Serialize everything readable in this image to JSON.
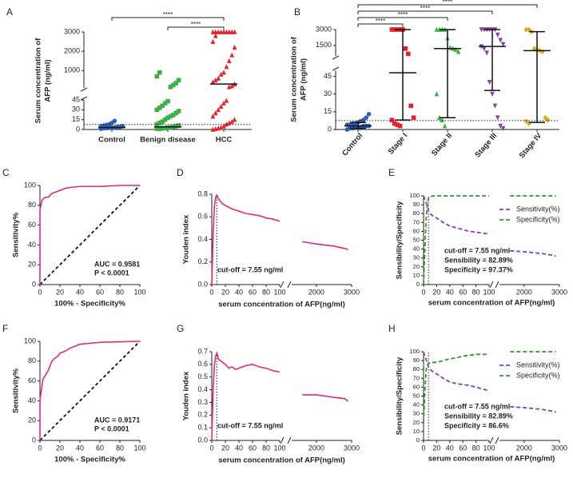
{
  "chart_data": [
    {
      "type": "strip",
      "panel_label": "A",
      "ylabel": [
        "Serum concentration of",
        "AFP (ng/ml)"
      ],
      "categories": [
        "Control",
        "Benign disease",
        "HCC"
      ],
      "y_segments": [
        {
          "ylim": [
            0,
            45
          ],
          "yticks": [
            0,
            15,
            30,
            45
          ]
        },
        {
          "ylim": [
            100,
            3000
          ],
          "yticks": [
            1000,
            2000,
            3000
          ]
        }
      ],
      "series": [
        {
          "color": "#2f5fb3",
          "marker": "circle",
          "values": [
            1,
            2,
            2,
            3,
            3,
            3,
            4,
            4,
            5,
            5,
            6,
            7,
            8,
            10,
            13
          ]
        },
        {
          "color": "#3cb043",
          "marker": "square",
          "values": [
            1,
            1,
            2,
            2,
            3,
            3,
            4,
            5,
            6,
            8,
            10,
            12,
            15,
            18,
            20,
            22,
            25,
            28,
            30,
            33,
            36,
            40,
            43,
            150,
            250,
            350,
            500,
            700,
            900
          ]
        },
        {
          "color": "#e8202a",
          "marker": "triangle",
          "values": [
            0,
            1,
            2,
            3,
            5,
            8,
            10,
            12,
            15,
            20,
            25,
            30,
            35,
            40,
            44,
            150,
            200,
            300,
            400,
            500,
            600,
            800,
            900,
            1200,
            1500,
            1800,
            2200,
            2500,
            2800,
            3000,
            3000,
            3000,
            3000,
            3000,
            3000,
            3000,
            3000,
            3000
          ]
        }
      ],
      "medians": [
        3,
        4,
        300
      ],
      "reference_line": 7.55,
      "significance": [
        {
          "pair": [
            0,
            2
          ],
          "label": "****"
        },
        {
          "pair": [
            1,
            2
          ],
          "label": "****"
        }
      ]
    },
    {
      "type": "strip",
      "panel_label": "B",
      "ylabel": [
        "Serum concentration of",
        "AFP (ng/ml)"
      ],
      "categories": [
        "Control",
        "Stage I",
        "Stage II",
        "Stage III",
        "Stage IV"
      ],
      "y_segments": [
        {
          "ylim": [
            0,
            50
          ],
          "yticks": [
            0,
            15,
            30,
            45
          ]
        },
        {
          "ylim": [
            500,
            3000
          ],
          "yticks": [
            1500,
            3000
          ]
        }
      ],
      "series": [
        {
          "color": "#2f5fb3",
          "marker": "circle",
          "values": [
            0,
            1,
            1,
            2,
            2,
            2,
            3,
            3,
            3,
            4,
            4,
            5,
            5,
            6,
            7,
            8,
            10,
            13
          ]
        },
        {
          "color": "#e8202a",
          "marker": "square",
          "values": [
            3000,
            3000,
            3000,
            3000,
            3000,
            1200,
            700,
            20,
            10,
            8,
            5,
            4,
            3
          ]
        },
        {
          "color": "#3cb043",
          "marker": "triangle",
          "values": [
            3000,
            3000,
            3000,
            3000,
            2200,
            1300,
            1200,
            1100,
            900,
            30,
            10,
            8,
            3
          ]
        },
        {
          "color": "#8b3fa8",
          "marker": "triangle-down",
          "values": [
            3000,
            3000,
            3000,
            3000,
            3000,
            3000,
            2500,
            2000,
            1600,
            1400,
            1200,
            800,
            40,
            30,
            20,
            10,
            3,
            1
          ]
        },
        {
          "color": "#d4b000",
          "marker": "diamond",
          "values": [
            3000,
            3000,
            2800,
            1200,
            1100,
            1000,
            900,
            10,
            8,
            7,
            5
          ]
        }
      ],
      "medians": [
        3,
        48,
        1200,
        1400,
        1000
      ],
      "whiskers": [
        [
          1,
          6
        ],
        [
          8,
          3000
        ],
        [
          10,
          3000
        ],
        [
          33,
          3000
        ],
        [
          6,
          2800
        ]
      ],
      "reference_line": 7.55,
      "significance": [
        {
          "pair": [
            0,
            1
          ],
          "label": "****"
        },
        {
          "pair": [
            0,
            2
          ],
          "label": "****"
        },
        {
          "pair": [
            0,
            3
          ],
          "label": "****"
        },
        {
          "pair": [
            0,
            4
          ],
          "label": "****"
        }
      ]
    },
    {
      "type": "roc",
      "panel_label": "C",
      "ylabel": "Sensitivity%",
      "xlabel": "100% - Specificity%",
      "xlim": [
        0,
        100
      ],
      "ylim": [
        0,
        100
      ],
      "xticks": [
        0,
        20,
        40,
        60,
        80,
        100
      ],
      "yticks": [
        0,
        20,
        40,
        60,
        80,
        100
      ],
      "x": [
        0,
        0,
        1,
        2,
        3,
        5,
        8,
        10,
        12,
        15,
        20,
        25,
        30,
        40,
        60,
        80,
        100
      ],
      "values": [
        0,
        75,
        80,
        85,
        86,
        88,
        88,
        90,
        92,
        93,
        95,
        97,
        98,
        99,
        99,
        100,
        100
      ],
      "color": "#e6287a",
      "annotations": [
        "AUC = 0.9581",
        "P < 0.0001"
      ]
    },
    {
      "type": "line",
      "panel_label": "D",
      "ylabel": "Youden index",
      "xlabel": "serum concentration of AFP(ng/ml)",
      "x_segments": [
        {
          "xlim": [
            0,
            100
          ],
          "xticks": [
            0,
            20,
            40,
            60,
            80,
            100
          ]
        },
        {
          "xlim": [
            1300,
            3000
          ],
          "xticks": [
            2000,
            3000
          ]
        }
      ],
      "ylim": [
        0,
        0.8
      ],
      "yticks": [
        {
          "value": 0,
          "label": "0.0"
        },
        0.2,
        0.4,
        0.6,
        0.8
      ],
      "x": [
        0,
        2,
        4,
        6,
        7.55,
        10,
        15,
        20,
        30,
        40,
        50,
        60,
        70,
        80,
        90,
        100,
        1600,
        2000,
        2500,
        2800,
        2900
      ],
      "series": [
        {
          "color": "#e6287a",
          "values": [
            0,
            0.45,
            0.7,
            0.78,
            0.79,
            0.76,
            0.72,
            0.7,
            0.67,
            0.65,
            0.63,
            0.62,
            0.61,
            0.59,
            0.58,
            0.56,
            0.38,
            0.36,
            0.34,
            0.32,
            0.31
          ]
        }
      ],
      "cutoff_x": 7.55,
      "annotations": [
        "cut-off = 7.55 ng/ml"
      ]
    },
    {
      "type": "line",
      "panel_label": "E",
      "ylabel": "Sensibility/Specificity",
      "xlabel": "serum concentration of AFP(ng/ml)",
      "x_segments": [
        {
          "xlim": [
            0,
            100
          ],
          "xticks": [
            0,
            20,
            40,
            60,
            80,
            100
          ]
        },
        {
          "xlim": [
            1300,
            3000
          ],
          "xticks": [
            2000,
            3000
          ]
        }
      ],
      "ylim": [
        0,
        100
      ],
      "yticks": [
        0,
        10,
        20,
        30,
        40,
        50,
        60,
        70,
        80,
        90,
        100
      ],
      "x": [
        0,
        2,
        4,
        6,
        7.55,
        10,
        15,
        20,
        30,
        40,
        50,
        60,
        70,
        80,
        90,
        100,
        1600,
        2000,
        2500,
        2800,
        2900
      ],
      "series": [
        {
          "name": "Sensitivity(%)",
          "color": "#8b3fa8",
          "dash": true,
          "values": [
            100,
            96,
            92,
            88,
            83,
            80,
            77,
            75,
            70,
            66,
            64,
            62,
            60,
            59,
            58,
            57,
            38,
            37,
            35,
            33,
            32
          ]
        },
        {
          "name": "Specificity(%)",
          "color": "#3a8f3a",
          "dash": true,
          "values": [
            0,
            40,
            75,
            92,
            97,
            99,
            100,
            100,
            100,
            100,
            100,
            100,
            100,
            100,
            100,
            100,
            100,
            100,
            100,
            100,
            100
          ]
        }
      ],
      "legend": "upper right",
      "cutoff_x": 7.55,
      "annotations": [
        "cut-off = 7.55 ng/ml",
        "Sensibility = 82.89%",
        "Specificity = 97.37%"
      ]
    },
    {
      "type": "roc",
      "panel_label": "F",
      "ylabel": "Sensitivity%",
      "xlabel": "100% - Specificity%",
      "xlim": [
        0,
        100
      ],
      "ylim": [
        0,
        100
      ],
      "xticks": [
        0,
        20,
        40,
        60,
        80,
        100
      ],
      "yticks": [
        0,
        20,
        40,
        60,
        80,
        100
      ],
      "x": [
        0,
        0,
        1,
        2,
        3,
        5,
        8,
        10,
        12,
        15,
        18,
        20,
        25,
        30,
        40,
        60,
        100
      ],
      "values": [
        0,
        40,
        48,
        55,
        62,
        65,
        70,
        75,
        80,
        83,
        85,
        88,
        90,
        93,
        97,
        99,
        100
      ],
      "color": "#e6287a",
      "annotations": [
        "AUC = 0.9171",
        "P < 0.0001"
      ]
    },
    {
      "type": "line",
      "panel_label": "G",
      "ylabel": "Youden index",
      "xlabel": "serum concentration of AFP(ng/ml)",
      "x_segments": [
        {
          "xlim": [
            0,
            100
          ],
          "xticks": [
            0,
            20,
            40,
            60,
            80,
            100
          ]
        },
        {
          "xlim": [
            1300,
            3000
          ],
          "xticks": [
            2000,
            3000
          ]
        }
      ],
      "ylim": [
        0,
        0.7
      ],
      "yticks": [
        {
          "value": 0,
          "label": "0.0"
        },
        0.1,
        0.2,
        0.3,
        0.4,
        0.5,
        0.6,
        0.7
      ],
      "x": [
        0,
        2,
        4,
        6,
        7.55,
        10,
        15,
        20,
        25,
        30,
        35,
        40,
        50,
        60,
        70,
        80,
        90,
        100,
        1600,
        2000,
        2500,
        2800,
        2900
      ],
      "series": [
        {
          "color": "#e6287a",
          "values": [
            0,
            0.4,
            0.6,
            0.67,
            0.69,
            0.64,
            0.62,
            0.6,
            0.57,
            0.58,
            0.56,
            0.57,
            0.59,
            0.6,
            0.58,
            0.57,
            0.55,
            0.54,
            0.36,
            0.36,
            0.34,
            0.33,
            0.31
          ]
        }
      ],
      "cutoff_x": 7.55,
      "annotations": [
        "cut-off = 7.55 ng/ml"
      ]
    },
    {
      "type": "line",
      "panel_label": "H",
      "ylabel": "Sensibility/Specificity",
      "xlabel": "serum concentration of AFP(ng/ml)",
      "x_segments": [
        {
          "xlim": [
            0,
            100
          ],
          "xticks": [
            0,
            20,
            40,
            60,
            80,
            100
          ]
        },
        {
          "xlim": [
            1300,
            3000
          ],
          "xticks": [
            2000,
            3000
          ]
        }
      ],
      "ylim": [
        0,
        100
      ],
      "yticks": [
        0,
        10,
        20,
        30,
        40,
        50,
        60,
        70,
        80,
        90,
        100
      ],
      "x": [
        0,
        2,
        4,
        6,
        7.55,
        10,
        15,
        20,
        30,
        40,
        50,
        60,
        70,
        80,
        90,
        100,
        1600,
        2000,
        2500,
        2800,
        2900
      ],
      "series": [
        {
          "name": "Sensitivity(%)",
          "color": "#8b3fa8",
          "dash": true,
          "values": [
            100,
            95,
            91,
            87,
            83,
            80,
            77,
            75,
            70,
            66,
            64,
            63,
            62,
            60,
            58,
            56,
            38,
            37,
            35,
            33,
            32
          ]
        },
        {
          "name": "Specificity(%)",
          "color": "#3a8f3a",
          "dash": true,
          "values": [
            20,
            55,
            80,
            85,
            87,
            87,
            88,
            88,
            90,
            92,
            93,
            95,
            96,
            97,
            97,
            97,
            100,
            100,
            100,
            100,
            100
          ]
        }
      ],
      "legend": "upper right",
      "cutoff_x": 7.55,
      "annotations": [
        "cut-off = 7.55 ng/ml",
        "Sensibility = 82.89%",
        "Specificity = 86.6%"
      ]
    }
  ]
}
